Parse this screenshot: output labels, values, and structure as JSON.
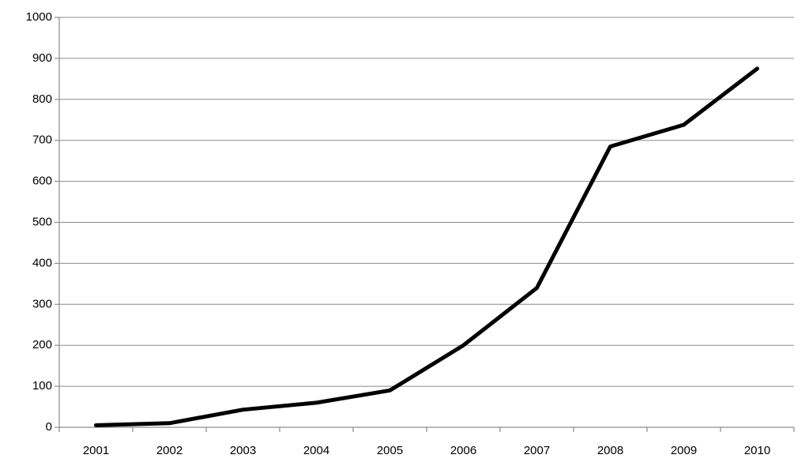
{
  "chart_data": {
    "type": "line",
    "categories": [
      "2001",
      "2002",
      "2003",
      "2004",
      "2005",
      "2006",
      "2007",
      "2008",
      "2009",
      "2010"
    ],
    "series": [
      {
        "color": "#000000",
        "values": [
          5,
          10,
          43,
          60,
          90,
          200,
          340,
          685,
          738,
          875
        ]
      }
    ],
    "ylim": [
      0,
      1000
    ],
    "yticks": [
      0,
      100,
      200,
      300,
      400,
      500,
      600,
      700,
      800,
      900,
      1000
    ],
    "grid": true
  }
}
